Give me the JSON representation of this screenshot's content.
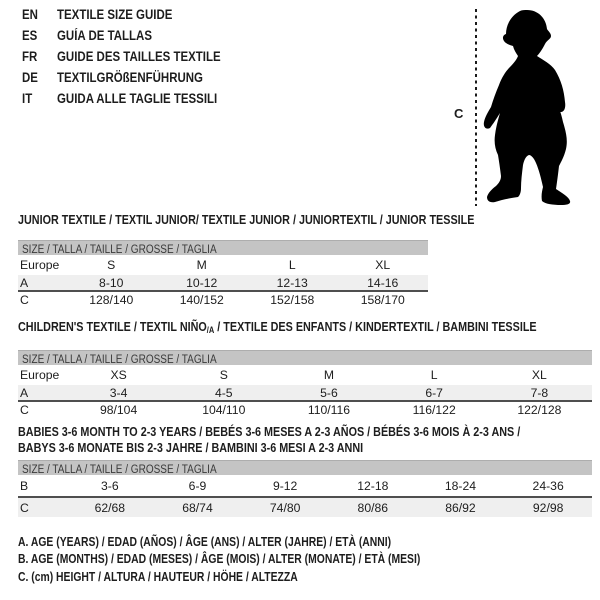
{
  "languages": [
    {
      "code": "EN",
      "text": "TEXTILE SIZE GUIDE"
    },
    {
      "code": "ES",
      "text": "GUÍA DE TALLAS"
    },
    {
      "code": "FR",
      "text": "GUIDE DES TAILLES TEXTILE"
    },
    {
      "code": "DE",
      "text": "TEXTILGRÖßENFÜHRUNG"
    },
    {
      "code": "IT",
      "text": "GUIDA ALLE TAGLIE TESSILI"
    }
  ],
  "figure": {
    "height_label": "C"
  },
  "tables": [
    {
      "id": "junior",
      "title_lines": [
        "JUNIOR TEXTILE / TEXTIL JUNIOR/ TEXTILE JUNIOR / JUNIORTEXTIL / JUNIOR TESSILE"
      ],
      "size_header": "SIZE / TALLA / TAILLE / GRÖSSE / TAGLIA",
      "rows": [
        {
          "label": "Europe",
          "values": [
            "S",
            "M",
            "L",
            "XL"
          ],
          "shaded": false,
          "rule_below": false
        },
        {
          "label": "A",
          "values": [
            "8-10",
            "10-12",
            "12-13",
            "14-16"
          ],
          "shaded": true,
          "rule_below": true
        },
        {
          "label": "C",
          "values": [
            "128/140",
            "140/152",
            "152/158",
            "158/170"
          ],
          "shaded": false,
          "rule_below": false
        }
      ]
    },
    {
      "id": "children",
      "title_parts": {
        "pre": "CHILDREN'S TEXTILE / TEXTIL NIÑO",
        "sub": "/A",
        "post": " / TEXTILE DES ENFANTS / KINDERTEXTIL / BAMBINI TESSILE"
      },
      "size_header": "SIZE / TALLA / TAILLE / GRÖSSE / TAGLIA",
      "rows": [
        {
          "label": "Europe",
          "values": [
            "XS",
            "S",
            "M",
            "L",
            "XL"
          ],
          "shaded": false,
          "rule_below": false
        },
        {
          "label": "A",
          "values": [
            "3-4",
            "4-5",
            "5-6",
            "6-7",
            "7-8"
          ],
          "shaded": true,
          "rule_below": true
        },
        {
          "label": "C",
          "values": [
            "98/104",
            "104/110",
            "110/116",
            "116/122",
            "122/128"
          ],
          "shaded": false,
          "rule_below": false
        }
      ]
    },
    {
      "id": "babies",
      "title_lines": [
        "BABIES 3-6 MONTH TO 2-3 YEARS / BEBÉS 3-6 MESES A 2-3 AÑOS / BÉBÉS 3-6 MOIS À 2-3 ANS /",
        "BABYS 3-6 MONATE BIS 2-3 JAHRE / BAMBINI 3-6 MESI A 2-3 ANNI"
      ],
      "size_header": "SIZE / TALLA / TAILLE / GRÖSSE / TAGLIA",
      "rows": [
        {
          "label": "B",
          "values": [
            "3-6",
            "6-9",
            "9-12",
            "12-18",
            "18-24",
            "24-36"
          ],
          "shaded": false,
          "rule_below": true
        },
        {
          "label": "C",
          "values": [
            "62/68",
            "68/74",
            "74/80",
            "80/86",
            "86/92",
            "92/98"
          ],
          "shaded": true,
          "rule_below": false
        }
      ]
    }
  ],
  "notes": [
    "A. AGE (YEARS) / EDAD (AÑOS) / ÂGE (ANS) / ALTER (JAHRE) / ETÀ (ANNI)",
    "B. AGE (MONTHS) / EDAD (MESES) / ÂGE (MOIS) / ALTER (MONATE) / ETÀ (MESI)",
    "C. (cm) HEIGHT / ALTURA / HAUTEUR / HÖHE / ALTEZZA"
  ],
  "colors": {
    "header_bar": "#c4c4c4",
    "shaded_row": "#efefef",
    "rule": "#4f4f4f",
    "text": "#1d1d1d"
  }
}
